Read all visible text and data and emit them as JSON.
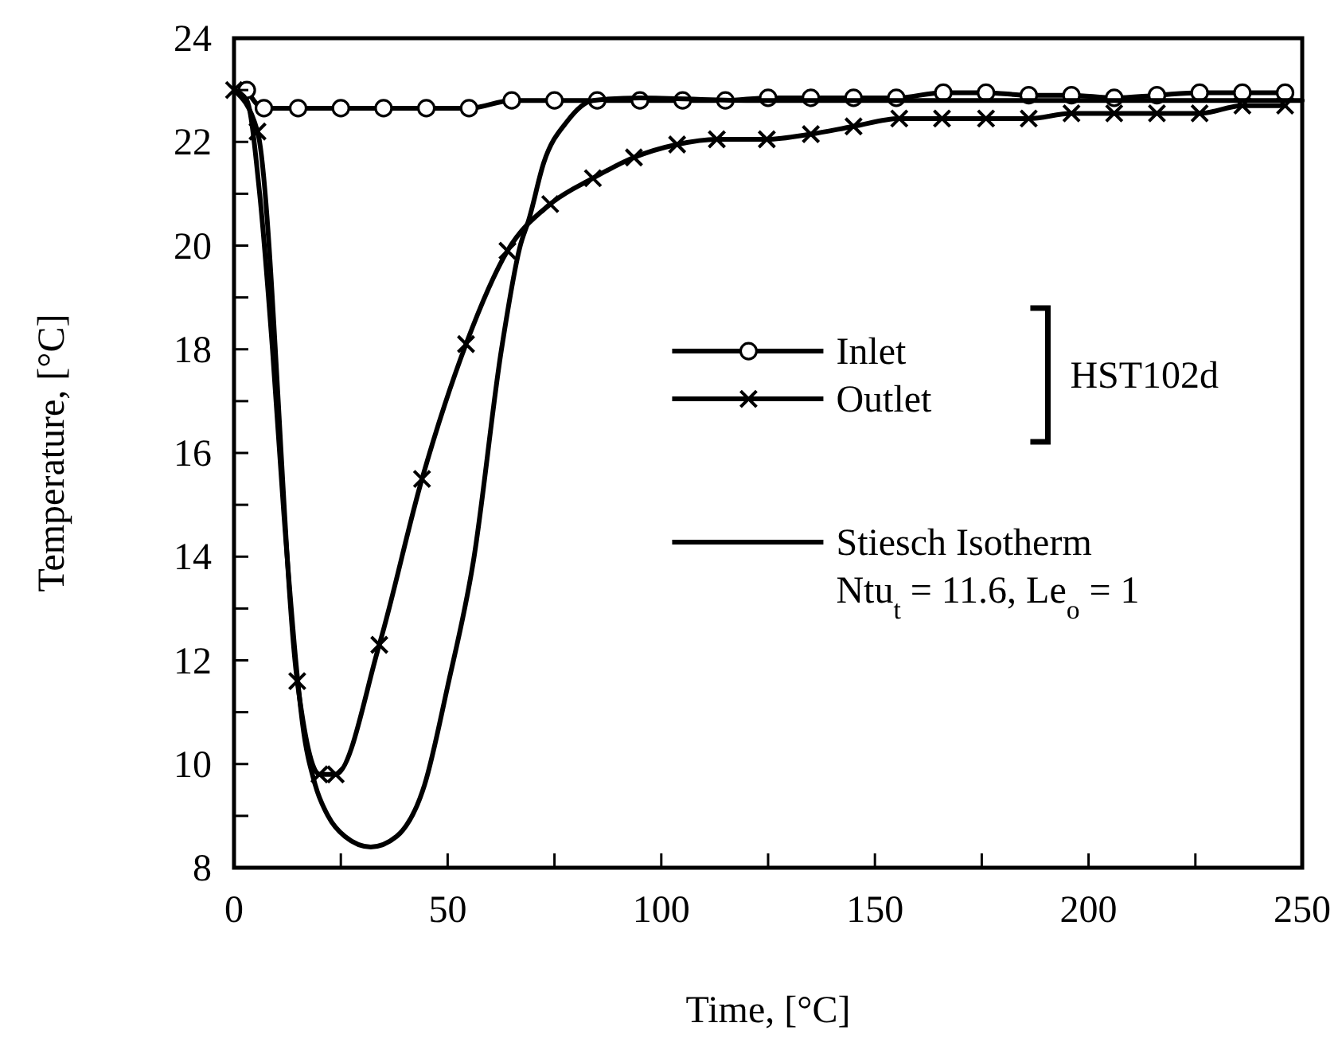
{
  "chart_data": {
    "type": "line",
    "xlabel": "Time,  [°C]",
    "ylabel": "Temperature,  [°C]",
    "xlim": [
      0,
      250
    ],
    "ylim": [
      8,
      24
    ],
    "xticks": [
      0,
      {
        "value": 25,
        "label": null
      },
      50,
      {
        "value": 75,
        "label": null
      },
      100,
      {
        "value": 125,
        "label": null
      },
      150,
      {
        "value": 175,
        "label": null
      },
      200,
      {
        "value": 225,
        "label": null
      },
      250
    ],
    "yticks": [
      8,
      {
        "value": 9,
        "label": null
      },
      10,
      {
        "value": 11,
        "label": null
      },
      12,
      {
        "value": 13,
        "label": null
      },
      14,
      {
        "value": 15,
        "label": null
      },
      16,
      {
        "value": 17,
        "label": null
      },
      18,
      {
        "value": 19,
        "label": null
      },
      20,
      {
        "value": 21,
        "label": null
      },
      22,
      {
        "value": 23,
        "label": null
      },
      24
    ],
    "grid": false,
    "legend": "right",
    "line_style": "solid",
    "series": [
      {
        "name": "Inlet",
        "color": "#000000",
        "marker": "circle",
        "x": [
          3,
          7,
          15,
          25,
          35,
          45,
          55,
          65,
          75,
          85,
          95,
          105,
          115,
          125,
          135,
          145,
          155,
          166,
          176,
          186,
          196,
          206,
          216,
          226,
          236,
          246
        ],
        "values": [
          23.0,
          22.65,
          22.65,
          22.65,
          22.65,
          22.65,
          22.65,
          22.8,
          22.8,
          22.8,
          22.8,
          22.8,
          22.8,
          22.85,
          22.85,
          22.85,
          22.85,
          22.95,
          22.95,
          22.9,
          22.9,
          22.85,
          22.9,
          22.95,
          22.95,
          22.95
        ]
      },
      {
        "name": "Outlet",
        "color": "#000000",
        "marker": "cross",
        "x": [
          0,
          5.5,
          14.8,
          20,
          23.8,
          34,
          44,
          54.3,
          64,
          74,
          84,
          93.6,
          103.7,
          113,
          124.7,
          135,
          145,
          155.7,
          165.7,
          176,
          186,
          196,
          206,
          216,
          226,
          236,
          246
        ],
        "values": [
          23.0,
          22.2,
          11.6,
          9.8,
          9.8,
          12.3,
          15.5,
          18.1,
          19.9,
          20.8,
          21.3,
          21.7,
          21.95,
          22.05,
          22.05,
          22.15,
          22.3,
          22.45,
          22.45,
          22.45,
          22.45,
          22.55,
          22.55,
          22.55,
          22.55,
          22.7,
          22.7
        ]
      },
      {
        "name": "Stiesch Isotherm",
        "color": "#000000",
        "marker": "none",
        "x": [
          0,
          3,
          6,
          9,
          11.6,
          14.8,
          16,
          19,
          22,
          26,
          32,
          38,
          44.6,
          50,
          56,
          62.6,
          67,
          69,
          72.5,
          78,
          84,
          95,
          120,
          150,
          200,
          250
        ],
        "values": [
          23.0,
          22.8,
          21.0,
          18.0,
          14.9,
          11.7,
          10.8,
          9.6,
          9.0,
          8.6,
          8.4,
          8.6,
          9.6,
          11.5,
          13.9,
          18.0,
          20.0,
          20.5,
          21.6,
          22.4,
          22.8,
          22.85,
          22.8,
          22.8,
          22.8,
          22.8
        ]
      }
    ],
    "annotations": [
      "HST102d",
      "Ntu$_{t}$ = 11.6, Le$_{o}$ = 1"
    ]
  }
}
